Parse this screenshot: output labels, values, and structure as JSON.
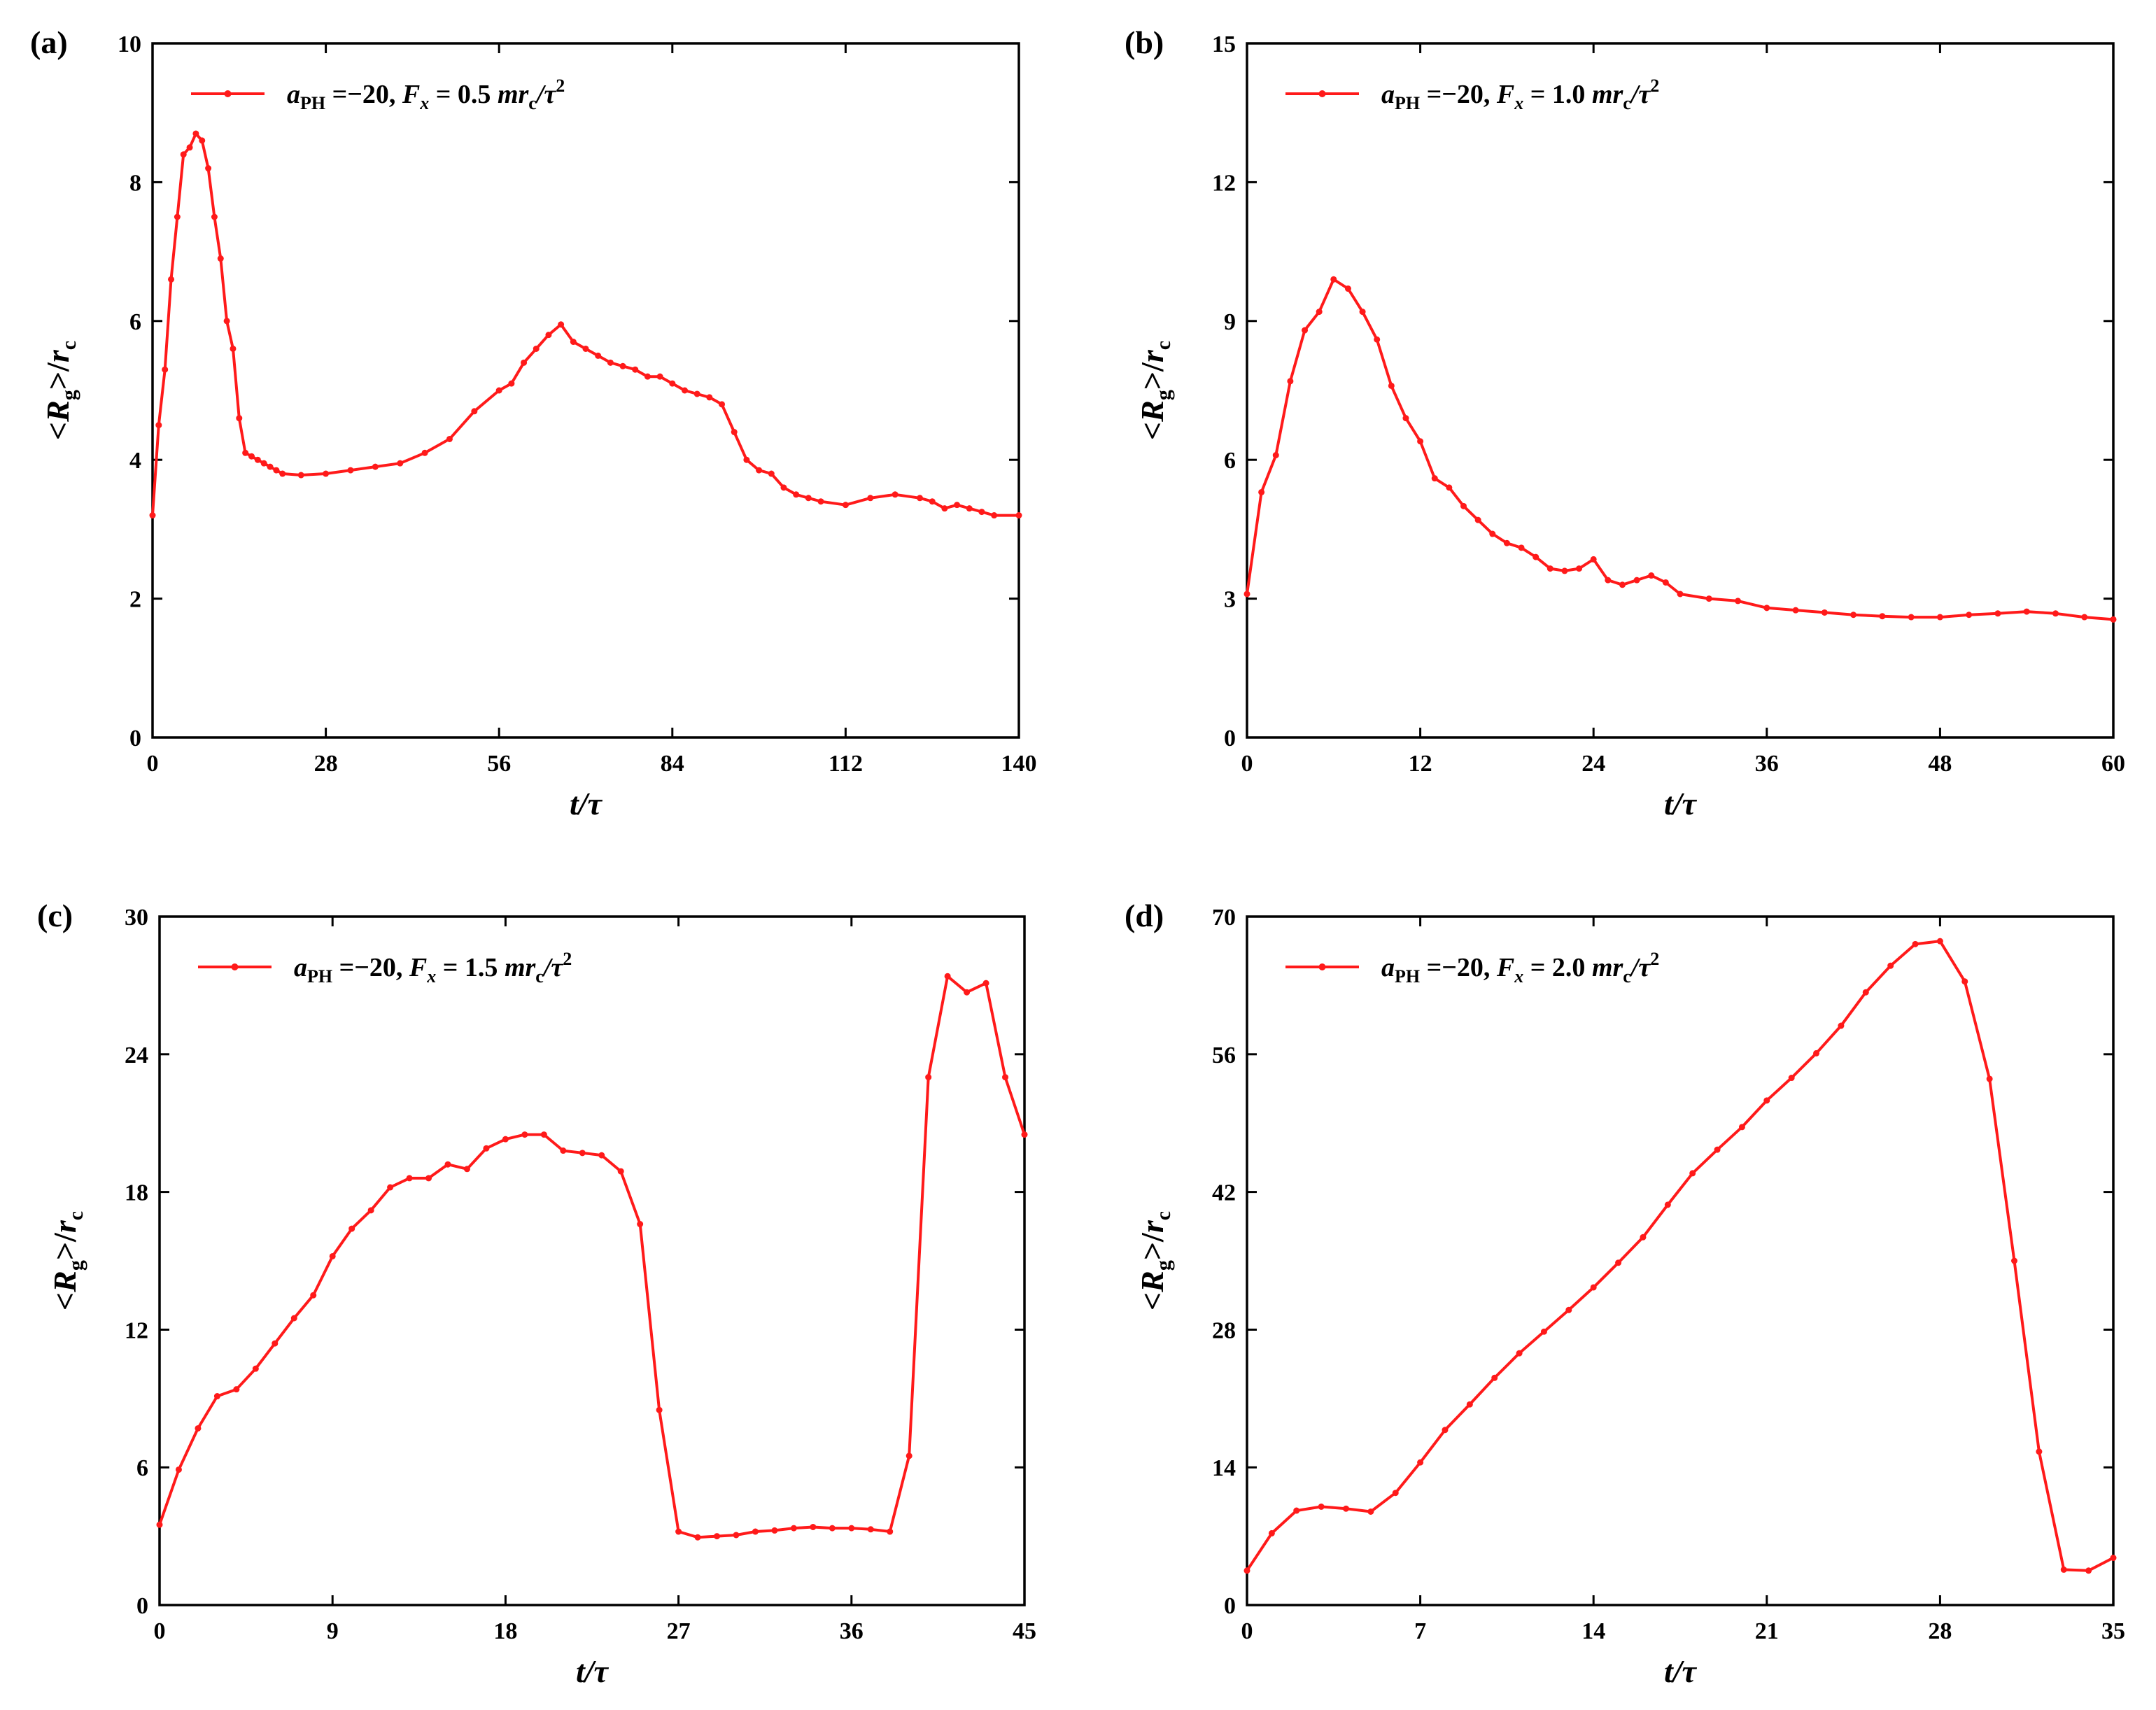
{
  "figure": {
    "line_color": "#ff1a1a",
    "ylabel_html": "<Rg>/rc"
  },
  "chart_data": [
    {
      "type": "line",
      "panel_label": "(a)",
      "legend": {
        "a_symbol": "a",
        "a_sub": "PH",
        "a_value": " =−20,  ",
        "f_symbol": "F",
        "f_sub": "x",
        "f_value": " = 0.5 ",
        "unit_m": "mr",
        "unit_c": "c",
        "unit_tail": "/τ",
        "unit_sup": "2"
      },
      "xlabel": "t/τ",
      "ylabel": {
        "lt": "<",
        "R": "R",
        "g": "g",
        "gt": ">/",
        "r": "r",
        "c": "c"
      },
      "xlim": [
        0,
        140
      ],
      "ylim": [
        0,
        10
      ],
      "xticks": [
        0,
        28,
        56,
        84,
        112,
        140
      ],
      "yticks": [
        0,
        2,
        4,
        6,
        8,
        10
      ],
      "x": [
        0,
        1,
        2,
        3,
        4,
        5,
        6,
        7,
        8,
        9,
        10,
        11,
        12,
        13,
        14,
        15,
        16,
        17,
        18,
        19,
        20,
        21,
        24,
        28,
        32,
        36,
        40,
        44,
        48,
        52,
        56,
        58,
        60,
        62,
        64,
        66,
        68,
        70,
        72,
        74,
        76,
        78,
        80,
        82,
        84,
        86,
        88,
        90,
        92,
        94,
        96,
        98,
        100,
        102,
        104,
        106,
        108,
        112,
        116,
        120,
        124,
        126,
        128,
        130,
        132,
        134,
        136,
        140
      ],
      "values": [
        3.2,
        4.5,
        5.3,
        6.6,
        7.5,
        8.4,
        8.5,
        8.7,
        8.6,
        8.2,
        7.5,
        6.9,
        6.0,
        5.6,
        4.6,
        4.1,
        4.05,
        4.0,
        3.95,
        3.9,
        3.85,
        3.8,
        3.78,
        3.8,
        3.85,
        3.9,
        3.95,
        4.1,
        4.3,
        4.7,
        5.0,
        5.1,
        5.4,
        5.6,
        5.8,
        5.95,
        5.7,
        5.6,
        5.5,
        5.4,
        5.35,
        5.3,
        5.2,
        5.2,
        5.1,
        5.0,
        4.95,
        4.9,
        4.8,
        4.4,
        4.0,
        3.85,
        3.8,
        3.6,
        3.5,
        3.45,
        3.4,
        3.35,
        3.45,
        3.5,
        3.45,
        3.4,
        3.3,
        3.35,
        3.3,
        3.25,
        3.2,
        3.2
      ]
    },
    {
      "type": "line",
      "panel_label": "(b)",
      "legend": {
        "a_symbol": "a",
        "a_sub": "PH",
        "a_value": " =−20,  ",
        "f_symbol": "F",
        "f_sub": "x",
        "f_value": " = 1.0 ",
        "unit_m": "mr",
        "unit_c": "c",
        "unit_tail": "/τ",
        "unit_sup": "2"
      },
      "xlabel": "t/τ",
      "ylabel": {
        "lt": "<",
        "R": "R",
        "g": "g",
        "gt": ">/",
        "r": "r",
        "c": "c"
      },
      "xlim": [
        0,
        60
      ],
      "ylim": [
        0,
        15
      ],
      "xticks": [
        0,
        12,
        24,
        36,
        48,
        60
      ],
      "yticks": [
        0,
        3,
        6,
        9,
        12,
        15
      ],
      "x": [
        0,
        1,
        2,
        3,
        4,
        5,
        6,
        7,
        8,
        9,
        10,
        11,
        12,
        13,
        14,
        15,
        16,
        17,
        18,
        19,
        20,
        21,
        22,
        23,
        24,
        25,
        26,
        27,
        28,
        29,
        30,
        32,
        34,
        36,
        38,
        40,
        42,
        44,
        46,
        48,
        50,
        52,
        54,
        56,
        58,
        60
      ],
      "values": [
        3.1,
        5.3,
        6.1,
        7.7,
        8.8,
        9.2,
        9.9,
        9.7,
        9.2,
        8.6,
        7.6,
        6.9,
        6.4,
        5.6,
        5.4,
        5.0,
        4.7,
        4.4,
        4.2,
        4.1,
        3.9,
        3.65,
        3.6,
        3.65,
        3.85,
        3.4,
        3.3,
        3.4,
        3.5,
        3.35,
        3.1,
        3.0,
        2.95,
        2.8,
        2.75,
        2.7,
        2.65,
        2.62,
        2.6,
        2.6,
        2.65,
        2.68,
        2.72,
        2.68,
        2.6,
        2.55
      ]
    },
    {
      "type": "line",
      "panel_label": "(c)",
      "legend": {
        "a_symbol": "a",
        "a_sub": "PH",
        "a_value": " =−20,  ",
        "f_symbol": "F",
        "f_sub": "x",
        "f_value": " = 1.5 ",
        "unit_m": "mr",
        "unit_c": "c",
        "unit_tail": "/τ",
        "unit_sup": "2"
      },
      "xlabel": "t/τ",
      "ylabel": {
        "lt": "<",
        "R": "R",
        "g": "g",
        "gt": ">/",
        "r": "r",
        "c": "c"
      },
      "xlim": [
        0,
        45
      ],
      "ylim": [
        0,
        30
      ],
      "xticks": [
        0,
        9,
        18,
        27,
        36,
        45
      ],
      "yticks": [
        0,
        6,
        12,
        18,
        24,
        30
      ],
      "x": [
        0,
        1,
        2,
        3,
        4,
        5,
        6,
        7,
        8,
        9,
        10,
        11,
        12,
        13,
        14,
        15,
        16,
        17,
        18,
        19,
        20,
        21,
        22,
        23,
        24,
        25,
        26,
        27,
        28,
        29,
        30,
        31,
        32,
        33,
        34,
        35,
        36,
        37,
        38,
        39,
        40,
        41,
        42,
        43,
        44,
        45
      ],
      "values": [
        3.5,
        5.9,
        7.7,
        9.1,
        9.4,
        10.3,
        11.4,
        12.5,
        13.5,
        15.2,
        16.4,
        17.2,
        18.2,
        18.6,
        18.6,
        19.2,
        19.0,
        19.9,
        20.3,
        20.5,
        20.5,
        19.8,
        19.7,
        19.6,
        18.9,
        16.6,
        8.5,
        3.2,
        2.95,
        3.0,
        3.05,
        3.2,
        3.25,
        3.35,
        3.4,
        3.35,
        3.35,
        3.3,
        3.2,
        6.5,
        23.0,
        27.4,
        26.7,
        27.1,
        23.0,
        20.5
      ]
    },
    {
      "type": "line",
      "panel_label": "(d)",
      "legend": {
        "a_symbol": "a",
        "a_sub": "PH",
        "a_value": " =−20,  ",
        "f_symbol": "F",
        "f_sub": "x",
        "f_value": " = 2.0 ",
        "unit_m": "mr",
        "unit_c": "c",
        "unit_tail": "/τ",
        "unit_sup": "2"
      },
      "xlabel": "t/τ",
      "ylabel": {
        "lt": "<",
        "R": "R",
        "g": "g",
        "gt": ">/",
        "r": "r",
        "c": "c"
      },
      "xlim": [
        0,
        35
      ],
      "ylim": [
        0,
        70
      ],
      "xticks": [
        0,
        7,
        14,
        21,
        28,
        35
      ],
      "yticks": [
        0,
        14,
        28,
        42,
        56,
        70
      ],
      "x": [
        0,
        1,
        2,
        3,
        4,
        5,
        6,
        7,
        8,
        9,
        10,
        11,
        12,
        13,
        14,
        15,
        16,
        17,
        18,
        19,
        20,
        21,
        22,
        23,
        24,
        25,
        26,
        27,
        28,
        29,
        30,
        31,
        32,
        33,
        34,
        35
      ],
      "values": [
        3.5,
        7.3,
        9.6,
        10.0,
        9.8,
        9.5,
        11.4,
        14.5,
        17.8,
        20.4,
        23.1,
        25.6,
        27.8,
        30.0,
        32.3,
        34.8,
        37.4,
        40.7,
        43.9,
        46.3,
        48.6,
        51.3,
        53.6,
        56.1,
        58.9,
        62.3,
        65.0,
        67.2,
        67.5,
        63.4,
        53.5,
        35.0,
        15.6,
        3.6,
        3.5,
        4.8
      ]
    }
  ]
}
